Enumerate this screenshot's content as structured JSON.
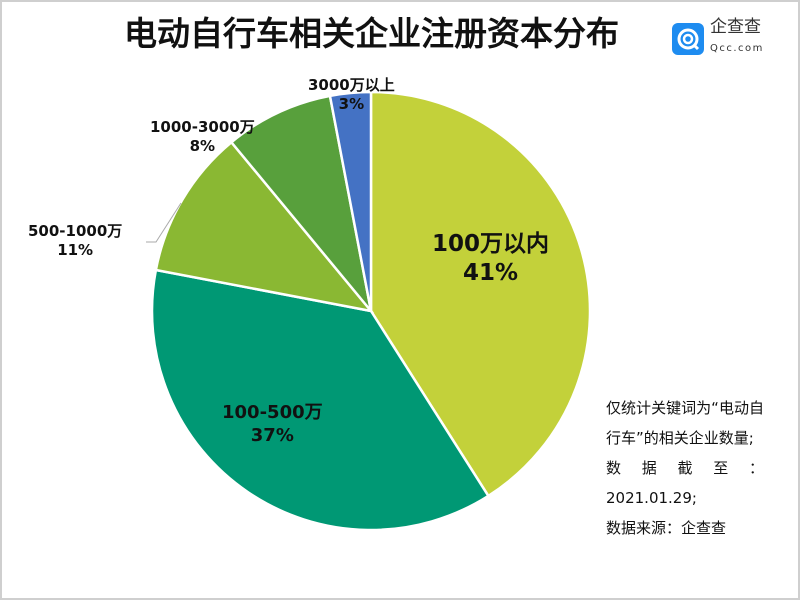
{
  "title": "电动自行车相关企业注册资本分布",
  "logo": {
    "cn": "企查查",
    "en": "Qcc.com",
    "color": "#1e8cf0"
  },
  "chart_data": {
    "type": "pie",
    "title": "电动自行车相关企业注册资本分布",
    "start": "12 o'clock, clockwise",
    "slices": [
      {
        "label": "100万以内",
        "value": 41,
        "pct": "41%",
        "color": "#c3d13a"
      },
      {
        "label": "100-500万",
        "value": 37,
        "pct": "37%",
        "color": "#009874"
      },
      {
        "label": "500-1000万",
        "value": 11,
        "pct": "11%",
        "color": "#8ab833"
      },
      {
        "label": "1000-3000万",
        "value": 8,
        "pct": "8%",
        "color": "#58a03c"
      },
      {
        "label": "3000万以上",
        "value": 3,
        "pct": "3%",
        "color": "#4472c4"
      }
    ]
  },
  "notes": [
    "仅统计关键词为“电动自行车”的相关企业数量;",
    "数据截至：2021.01.29;",
    "数据来源：企查查"
  ]
}
